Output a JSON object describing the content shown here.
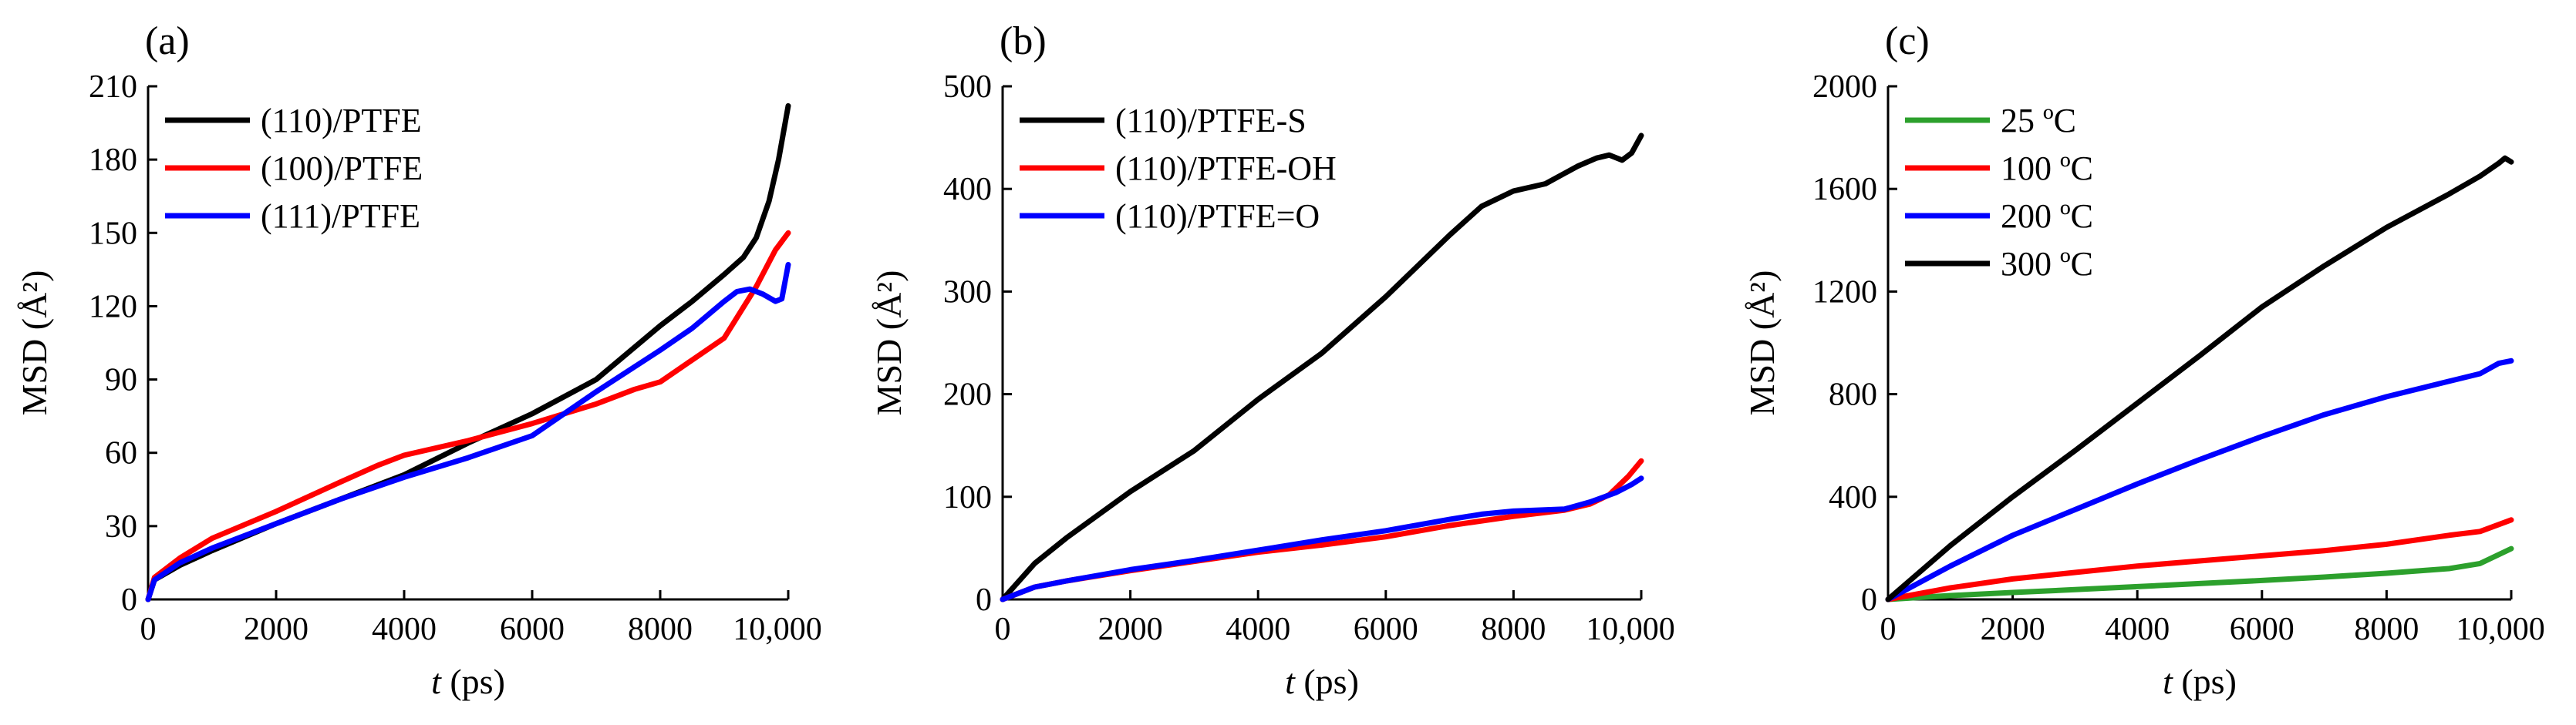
{
  "chart_data": [
    {
      "type": "line",
      "panel_label": "(a)",
      "xlabel_italic": "t",
      "xlabel_rest": " (ps)",
      "ylabel": "MSD (Å²)",
      "xlim": [
        0,
        10000
      ],
      "ylim": [
        0,
        210
      ],
      "xticks": [
        0,
        2000,
        4000,
        6000,
        8000,
        10000
      ],
      "xtick_labels": [
        "0",
        "2000",
        "4000",
        "6000",
        "8000",
        "10,000"
      ],
      "yticks": [
        0,
        30,
        60,
        90,
        120,
        150,
        180,
        210
      ],
      "ytick_labels": [
        "0",
        "30",
        "60",
        "90",
        "120",
        "150",
        "180",
        "210"
      ],
      "legend_position": "top-left",
      "series": [
        {
          "name": "(110)/PTFE",
          "color": "#000000",
          "x": [
            0,
            100,
            500,
            1000,
            2000,
            3000,
            4000,
            5000,
            6000,
            7000,
            8000,
            8500,
            9000,
            9300,
            9500,
            9700,
            9850,
            10000
          ],
          "y": [
            0,
            8,
            14,
            20,
            31,
            41,
            51,
            64,
            76,
            90,
            112,
            122,
            133,
            140,
            148,
            163,
            180,
            202
          ]
        },
        {
          "name": "(100)/PTFE",
          "color": "#ff0000",
          "x": [
            0,
            100,
            500,
            1000,
            2000,
            3000,
            3600,
            4000,
            5000,
            6000,
            7000,
            7600,
            8000,
            8500,
            9000,
            9500,
            9800,
            10000
          ],
          "y": [
            0,
            9,
            17,
            25,
            36,
            48,
            55,
            59,
            65,
            72,
            80,
            86,
            89,
            98,
            107,
            128,
            143,
            150
          ]
        },
        {
          "name": "(111)/PTFE",
          "color": "#0000ff",
          "x": [
            0,
            100,
            500,
            1000,
            2000,
            3000,
            4000,
            5000,
            6000,
            7000,
            8000,
            8500,
            9000,
            9200,
            9400,
            9600,
            9800,
            9900,
            10000
          ],
          "y": [
            0,
            8,
            15,
            21,
            31,
            41,
            50,
            58,
            67,
            85,
            102,
            111,
            122,
            126,
            127,
            125,
            122,
            123,
            137
          ]
        }
      ]
    },
    {
      "type": "line",
      "panel_label": "(b)",
      "xlabel_italic": "t",
      "xlabel_rest": " (ps)",
      "ylabel": "MSD (Å²)",
      "xlim": [
        0,
        10000
      ],
      "ylim": [
        0,
        500
      ],
      "xticks": [
        0,
        2000,
        4000,
        6000,
        8000,
        10000
      ],
      "xtick_labels": [
        "0",
        "2000",
        "4000",
        "6000",
        "8000",
        "10,000"
      ],
      "yticks": [
        0,
        100,
        200,
        300,
        400,
        500
      ],
      "ytick_labels": [
        "0",
        "100",
        "200",
        "300",
        "400",
        "500"
      ],
      "legend_position": "top-left",
      "series": [
        {
          "name": "(110)/PTFE-S",
          "color": "#000000",
          "x": [
            0,
            500,
            1000,
            2000,
            3000,
            4000,
            5000,
            6000,
            7000,
            7500,
            8000,
            8500,
            9000,
            9300,
            9500,
            9700,
            9850,
            10000
          ],
          "y": [
            0,
            35,
            60,
            105,
            145,
            195,
            240,
            295,
            355,
            383,
            398,
            405,
            422,
            430,
            433,
            428,
            435,
            452
          ]
        },
        {
          "name": "(110)/PTFE-OH",
          "color": "#ff0000",
          "x": [
            0,
            500,
            1000,
            2000,
            3000,
            4000,
            5000,
            6000,
            7000,
            8000,
            8800,
            9200,
            9500,
            9800,
            10000
          ],
          "y": [
            0,
            12,
            18,
            28,
            37,
            46,
            53,
            61,
            72,
            81,
            87,
            93,
            102,
            120,
            135
          ]
        },
        {
          "name": "(110)/PTFE=O",
          "color": "#0000ff",
          "x": [
            0,
            500,
            1000,
            2000,
            3000,
            4000,
            5000,
            6000,
            7000,
            7500,
            8000,
            8800,
            9200,
            9600,
            9850,
            10000
          ],
          "y": [
            0,
            12,
            18,
            29,
            38,
            48,
            58,
            67,
            78,
            83,
            86,
            88,
            95,
            104,
            112,
            118
          ]
        }
      ]
    },
    {
      "type": "line",
      "panel_label": "(c)",
      "xlabel_italic": "t",
      "xlabel_rest": " (ps)",
      "ylabel": "MSD (Å²)",
      "xlim": [
        0,
        10000
      ],
      "ylim": [
        0,
        2000
      ],
      "xticks": [
        0,
        2000,
        4000,
        6000,
        8000,
        10000
      ],
      "xtick_labels": [
        "0",
        "2000",
        "4000",
        "6000",
        "8000",
        "10,000"
      ],
      "yticks": [
        0,
        400,
        800,
        1200,
        1600,
        2000
      ],
      "ytick_labels": [
        "0",
        "400",
        "800",
        "1200",
        "1600",
        "2000"
      ],
      "legend_position": "top-left",
      "series": [
        {
          "name": "25 ºC",
          "color": "#2ca02c",
          "x": [
            0,
            1000,
            2000,
            3000,
            4000,
            5000,
            6000,
            7000,
            8000,
            9000,
            9500,
            10000
          ],
          "y": [
            0,
            15,
            27,
            38,
            50,
            62,
            74,
            87,
            102,
            120,
            140,
            198
          ]
        },
        {
          "name": "100 ºC",
          "color": "#ff0000",
          "x": [
            0,
            1000,
            2000,
            3000,
            4000,
            5000,
            6000,
            7000,
            8000,
            9000,
            9500,
            10000
          ],
          "y": [
            0,
            45,
            80,
            105,
            130,
            150,
            170,
            190,
            215,
            250,
            265,
            310
          ]
        },
        {
          "name": "200 ºC",
          "color": "#0000ff",
          "x": [
            0,
            1000,
            2000,
            3000,
            4000,
            5000,
            6000,
            7000,
            8000,
            9000,
            9500,
            9800,
            10000
          ],
          "y": [
            0,
            130,
            250,
            350,
            450,
            545,
            635,
            720,
            790,
            850,
            880,
            920,
            930
          ]
        },
        {
          "name": "300 ºC",
          "color": "#000000",
          "x": [
            0,
            1000,
            2000,
            3000,
            4000,
            5000,
            6000,
            7000,
            8000,
            9000,
            9500,
            9800,
            9900,
            10000
          ],
          "y": [
            0,
            210,
            400,
            580,
            765,
            950,
            1140,
            1300,
            1450,
            1580,
            1650,
            1700,
            1720,
            1705
          ]
        }
      ]
    }
  ]
}
